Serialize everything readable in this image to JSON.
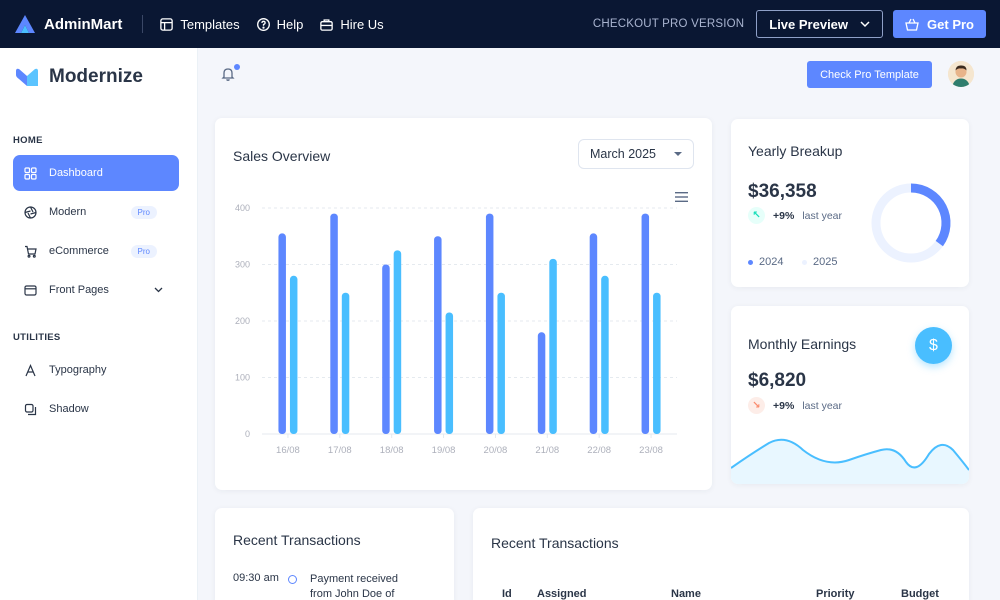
{
  "topbar": {
    "brand": "AdminMart",
    "links": [
      {
        "label": "Templates",
        "icon": "layout-icon"
      },
      {
        "label": "Help",
        "icon": "help-circle-icon"
      },
      {
        "label": "Hire Us",
        "icon": "briefcase-icon"
      }
    ],
    "checkout_label": "CHECKOUT PRO VERSION",
    "live_preview_label": "Live Preview",
    "get_pro_label": "Get Pro"
  },
  "sidebar": {
    "brand": "Modernize",
    "sections": [
      {
        "caption": "HOME",
        "items": [
          {
            "label": "Dashboard",
            "icon": "dashboard-icon",
            "active": true
          },
          {
            "label": "Modern",
            "icon": "aperture-icon",
            "badge": "Pro"
          },
          {
            "label": "eCommerce",
            "icon": "shopping-cart-icon",
            "badge": "Pro"
          },
          {
            "label": "Front Pages",
            "icon": "app-window-icon",
            "chevron": true
          }
        ]
      },
      {
        "caption": "UTILITIES",
        "items": [
          {
            "label": "Typography",
            "icon": "typography-icon"
          },
          {
            "label": "Shadow",
            "icon": "copy-icon"
          }
        ]
      }
    ]
  },
  "header": {
    "check_pro_label": "Check Pro Template"
  },
  "sales_overview": {
    "title": "Sales Overview",
    "month_selected": "March 2025"
  },
  "yearly_breakup": {
    "title": "Yearly Breakup",
    "value": "$36,358",
    "percent": "+9%",
    "percent_label": "last year",
    "legend": [
      "2024",
      "2025"
    ],
    "donut_fraction": 0.35
  },
  "monthly_earnings": {
    "title": "Monthly Earnings",
    "value": "$6,820",
    "percent": "+9%",
    "percent_label": "last year"
  },
  "recent_transactions_left": {
    "title": "Recent Transactions",
    "time": "09:30 am",
    "text_line1": "Payment received",
    "text_line2": "from John Doe of"
  },
  "recent_transactions_right": {
    "title": "Recent Transactions",
    "columns": [
      "Id",
      "Assigned",
      "Name",
      "Priority",
      "Budget"
    ]
  },
  "colors": {
    "primary": "#5d87ff",
    "secondary": "#49beff",
    "topbar": "#0a1733"
  },
  "chart_data": {
    "type": "bar",
    "categories": [
      "16/08",
      "17/08",
      "18/08",
      "19/08",
      "20/08",
      "21/08",
      "22/08",
      "23/08"
    ],
    "series": [
      {
        "values": [
          355,
          390,
          300,
          350,
          390,
          180,
          355,
          390
        ],
        "color": "#5d87ff"
      },
      {
        "values": [
          280,
          250,
          325,
          215,
          250,
          310,
          280,
          250
        ],
        "color": "#49beff"
      }
    ],
    "y_ticks": [
      0,
      100,
      200,
      300,
      400
    ],
    "ylim": [
      0,
      400
    ],
    "grid": true
  }
}
